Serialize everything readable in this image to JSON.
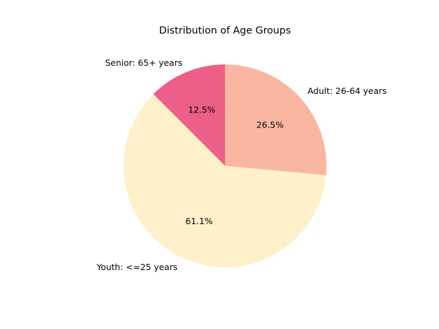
{
  "chart_data": {
    "type": "pie",
    "title": "Distribution of Age Groups",
    "start_angle_deg": 90,
    "direction": "counterclockwise",
    "legend": "none",
    "slices": [
      {
        "label": "Senior: 65+ years",
        "value": 12.5,
        "pct_label": "12.5%",
        "color": "#ec6088"
      },
      {
        "label": "Youth: <=25 years",
        "value": 61.1,
        "pct_label": "61.1%",
        "color": "#fff0cc"
      },
      {
        "label": "Adult: 26-64 years",
        "value": 26.5,
        "pct_label": "26.5%",
        "color": "#f9b7a2"
      }
    ]
  }
}
